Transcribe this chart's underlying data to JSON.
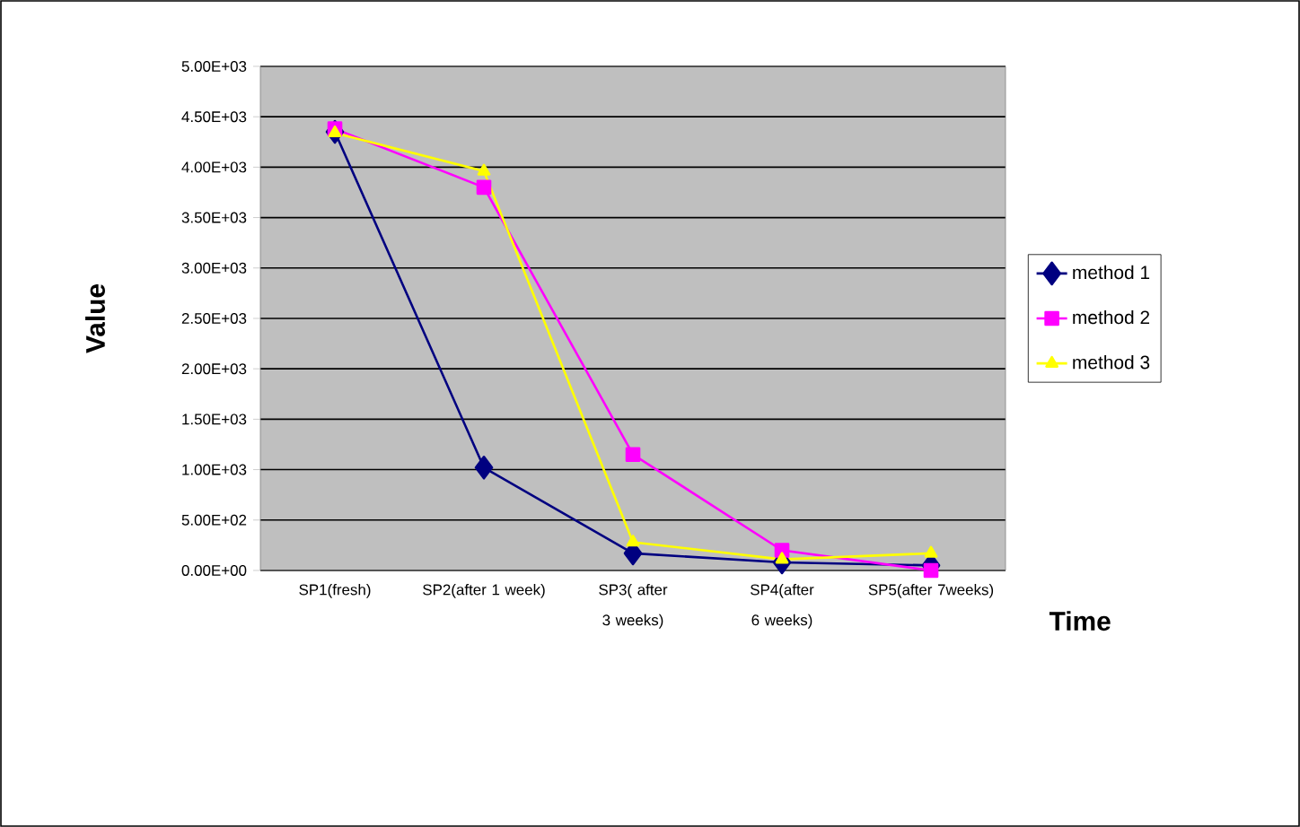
{
  "chart_data": {
    "type": "line",
    "xlabel": "Time",
    "ylabel": "Value",
    "categories": [
      "SP1(fresh)",
      "SP2(after 1 week)",
      "SP3( after 3 weeks)",
      "SP4(after 6 weeks)",
      "SP5(after 7weeks)"
    ],
    "series": [
      {
        "name": "method 1",
        "color": "#000080",
        "marker": "diamond",
        "values": [
          4350,
          1020,
          170,
          80,
          50
        ]
      },
      {
        "name": "method 2",
        "color": "#ff00ff",
        "marker": "square",
        "values": [
          4380,
          3800,
          1150,
          200,
          0
        ]
      },
      {
        "name": "method 3",
        "color": "#ffff00",
        "marker": "triangle",
        "values": [
          4340,
          3960,
          280,
          110,
          170
        ]
      }
    ],
    "ylim": [
      0,
      5000
    ],
    "yticks": [
      {
        "value": 0,
        "label": "0.00E+00"
      },
      {
        "value": 500,
        "label": "5.00E+02"
      },
      {
        "value": 1000,
        "label": "1.00E+03"
      },
      {
        "value": 1500,
        "label": "1.50E+03"
      },
      {
        "value": 2000,
        "label": "2.00E+03"
      },
      {
        "value": 2500,
        "label": "2.50E+03"
      },
      {
        "value": 3000,
        "label": "3.00E+03"
      },
      {
        "value": 3500,
        "label": "3.50E+03"
      },
      {
        "value": 4000,
        "label": "4.00E+03"
      },
      {
        "value": 4500,
        "label": "4.50E+03"
      },
      {
        "value": 5000,
        "label": "5.00E+03"
      }
    ],
    "grid": "y",
    "legend": "right",
    "line_style": "solid"
  }
}
